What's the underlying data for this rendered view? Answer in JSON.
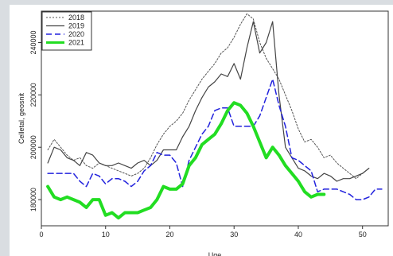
{
  "chart_data": {
    "type": "line",
    "xlabel": "Uge",
    "ylabel": "Celletal, geosnit",
    "xlim": [
      0,
      54
    ],
    "ylim": [
      170000,
      252000
    ],
    "xticks": [
      0,
      10,
      20,
      30,
      40,
      50
    ],
    "yticks": [
      180000,
      200000,
      220000,
      240000
    ],
    "ytick_labels": [
      "180000",
      "200000",
      "220000",
      "240000"
    ],
    "legend_position": "top-left",
    "grid": false,
    "series": [
      {
        "name": "2018",
        "color": "#555555",
        "dash": "2,2",
        "width": 1,
        "x": [
          1,
          2,
          3,
          4,
          5,
          6,
          7,
          8,
          9,
          10,
          11,
          12,
          13,
          14,
          15,
          16,
          17,
          18,
          19,
          20,
          21,
          22,
          23,
          24,
          25,
          26,
          27,
          28,
          29,
          30,
          31,
          32,
          33,
          34,
          35,
          36,
          37,
          38,
          39,
          40,
          41,
          42,
          43,
          44,
          45,
          46,
          47,
          48,
          49,
          50,
          51
        ],
        "y": [
          199000,
          203000,
          200000,
          197000,
          195000,
          196000,
          193000,
          192000,
          194000,
          193000,
          192000,
          191000,
          190000,
          189000,
          190000,
          192000,
          196000,
          201000,
          205000,
          208000,
          210000,
          213000,
          218000,
          222000,
          226000,
          229000,
          232000,
          236000,
          238000,
          242000,
          247000,
          251000,
          249000,
          240000,
          234000,
          230000,
          226000,
          220000,
          214000,
          207000,
          202000,
          203000,
          200000,
          196000,
          197000,
          194000,
          192000,
          190000,
          188000,
          190000,
          192000
        ]
      },
      {
        "name": "2019",
        "color": "#444444",
        "dash": "",
        "width": 1.2,
        "x": [
          1,
          2,
          3,
          4,
          5,
          6,
          7,
          8,
          9,
          10,
          11,
          12,
          13,
          14,
          15,
          16,
          17,
          18,
          19,
          20,
          21,
          22,
          23,
          24,
          25,
          26,
          27,
          28,
          29,
          30,
          31,
          32,
          33,
          34,
          35,
          36,
          37,
          38,
          39,
          40,
          41,
          42,
          43,
          44,
          45,
          46,
          47,
          48,
          49,
          50,
          51
        ],
        "y": [
          194000,
          200000,
          199000,
          196000,
          195000,
          193000,
          198000,
          197000,
          194000,
          193000,
          193000,
          194000,
          193000,
          192000,
          194000,
          195000,
          193000,
          195000,
          199000,
          199000,
          199000,
          204000,
          208000,
          214000,
          219000,
          223000,
          225000,
          228000,
          227000,
          232000,
          226000,
          238000,
          248000,
          236000,
          240000,
          248000,
          220000,
          200000,
          196000,
          192000,
          191000,
          189000,
          188000,
          190000,
          189000,
          187000,
          188000,
          188000,
          189000,
          190000,
          192000
        ]
      },
      {
        "name": "2020",
        "color": "#2222dd",
        "dash": "7,4",
        "width": 1.5,
        "x": [
          1,
          2,
          3,
          4,
          5,
          6,
          7,
          8,
          9,
          10,
          11,
          12,
          13,
          14,
          15,
          16,
          17,
          18,
          19,
          20,
          21,
          22,
          23,
          24,
          25,
          26,
          27,
          28,
          29,
          30,
          31,
          32,
          33,
          34,
          35,
          36,
          37,
          38,
          39,
          40,
          41,
          42,
          43,
          44,
          45,
          46,
          47,
          48,
          49,
          50,
          51,
          52,
          53
        ],
        "y": [
          190000,
          190000,
          190000,
          190000,
          190000,
          187000,
          185000,
          190000,
          189000,
          186000,
          188000,
          188000,
          187000,
          185000,
          187000,
          191000,
          193000,
          198000,
          197000,
          197000,
          194000,
          185000,
          195000,
          200000,
          205000,
          208000,
          214000,
          215000,
          215000,
          208000,
          208000,
          208000,
          208000,
          212000,
          219000,
          226000,
          216000,
          208000,
          196000,
          195000,
          193000,
          191000,
          183000,
          184000,
          184000,
          184000,
          183000,
          182000,
          180000,
          180000,
          181000,
          184000,
          184000
        ]
      },
      {
        "name": "2021",
        "color": "#22dd22",
        "dash": "",
        "width": 4,
        "x": [
          1,
          2,
          3,
          4,
          5,
          6,
          7,
          8,
          9,
          10,
          11,
          12,
          13,
          14,
          15,
          16,
          17,
          18,
          19,
          20,
          21,
          22,
          23,
          24,
          25,
          26,
          27,
          28,
          29,
          30,
          31,
          32,
          33,
          34,
          35,
          36,
          37,
          38,
          39,
          40,
          41,
          42,
          43,
          44
        ],
        "y": [
          185000,
          181000,
          180000,
          181000,
          180000,
          179000,
          177000,
          180000,
          180000,
          174000,
          175000,
          173000,
          175000,
          175000,
          175000,
          176000,
          177000,
          180000,
          185000,
          184000,
          184000,
          186000,
          193000,
          196000,
          201000,
          203000,
          205000,
          209000,
          214000,
          217000,
          216000,
          213000,
          208000,
          202000,
          196000,
          200000,
          197000,
          193000,
          190000,
          187000,
          183000,
          181000,
          182000,
          182000
        ]
      }
    ]
  }
}
